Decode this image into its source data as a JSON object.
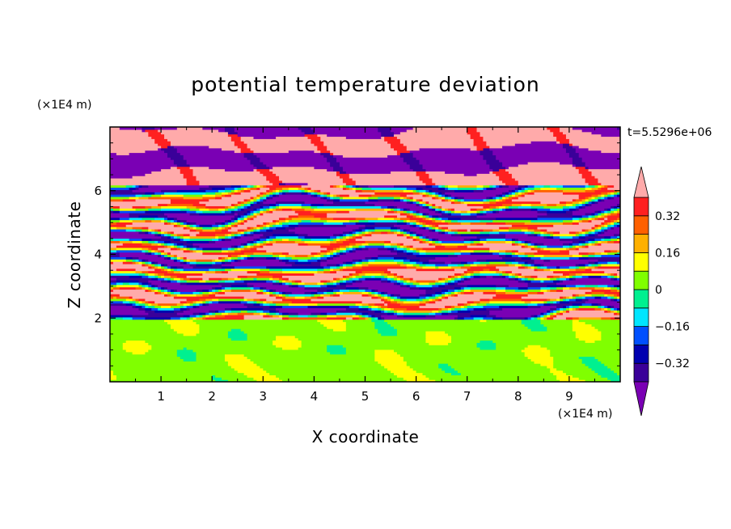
{
  "chart_data": {
    "type": "heatmap",
    "title": "potential temperature deviation",
    "xlabel": "X coordinate",
    "ylabel": "Z coordinate",
    "x_unit": "(×1E4 m)",
    "y_unit": "(×1E4 m)",
    "time_label": "t=5.5296e+06",
    "xlim": [
      0,
      10
    ],
    "ylim": [
      0,
      8
    ],
    "x_ticks": [
      1,
      2,
      3,
      4,
      5,
      6,
      7,
      8,
      9
    ],
    "y_ticks": [
      2,
      4,
      6
    ],
    "colorbar": {
      "levels": [
        -0.48,
        -0.4,
        -0.32,
        -0.24,
        -0.16,
        -0.08,
        0,
        0.08,
        0.16,
        0.24,
        0.32,
        0.4,
        0.48
      ],
      "tick_values": [
        0.32,
        0.16,
        0,
        -0.16,
        -0.32
      ],
      "tick_labels": [
        "0.32",
        "0.16",
        "0",
        "−0.16",
        "−0.32"
      ],
      "colors": [
        "#7a00b4",
        "#3a0099",
        "#0000b0",
        "#0050ff",
        "#00e6ff",
        "#00f090",
        "#80ff00",
        "#ffff00",
        "#ffb000",
        "#ff6000",
        "#ff2020",
        "#ffaaaa"
      ],
      "extend": "both"
    },
    "regions": [
      {
        "z_range": [
          0,
          2
        ],
        "description": "mostly small positive/near-zero values (green / light green)",
        "values": [
          0,
          0.08
        ]
      },
      {
        "z_range": [
          2,
          8
        ],
        "description": "layered stratified bands alternating strongly negative (purple) and strongly positive (pink)",
        "values": [
          -0.48,
          0.48
        ]
      }
    ]
  }
}
